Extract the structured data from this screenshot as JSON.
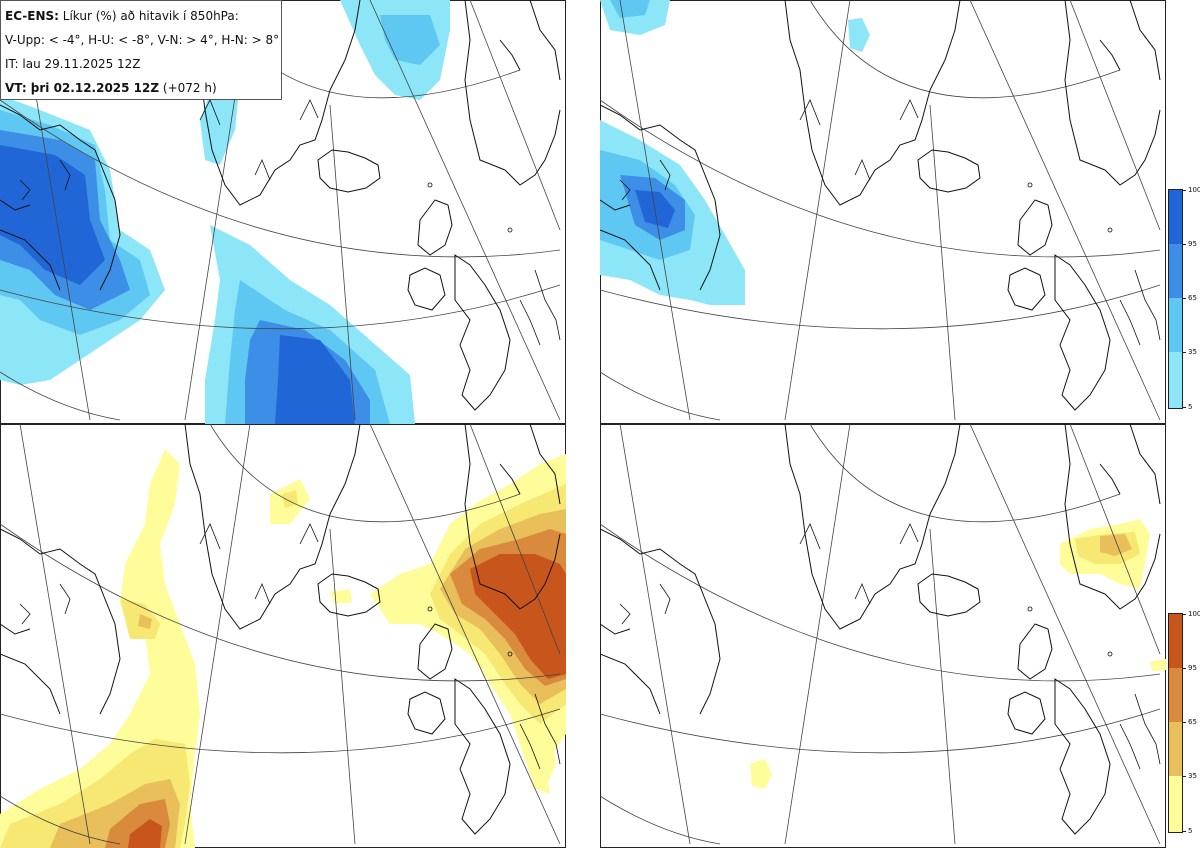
{
  "legend": {
    "model": "EC-ENS:",
    "title_rest": "Líkur (%) að hitavik í 850hPa:",
    "thresholds": "V-Upp: < -4°, H-U: < -8°, V-N: > 4°, H-N: > 8°",
    "initial_time": "IT: lau 29.11.2025 12Z",
    "valid_prefix": "VT: þri 02.12.2025 12Z",
    "valid_suffix": "(+072 h)"
  },
  "panels": [
    {
      "id": "V-Upp",
      "palette": "blue"
    },
    {
      "id": "H-U",
      "palette": "blue"
    },
    {
      "id": "V-N",
      "palette": "orange"
    },
    {
      "id": "H-N",
      "palette": "orange"
    }
  ],
  "colorbar": {
    "labels": [
      "100",
      "95",
      "65",
      "35",
      "5"
    ],
    "blue": [
      "#2166d6",
      "#3c8ee6",
      "#5ec8f2",
      "#8ce6f8",
      "#b8fafd"
    ],
    "orange": [
      "#c8561c",
      "#d98a3c",
      "#e9bf5c",
      "#f6e872",
      "#fffd9a"
    ]
  },
  "colors": {
    "coast": "#111111",
    "grid": "#333333",
    "border": "#222222"
  }
}
